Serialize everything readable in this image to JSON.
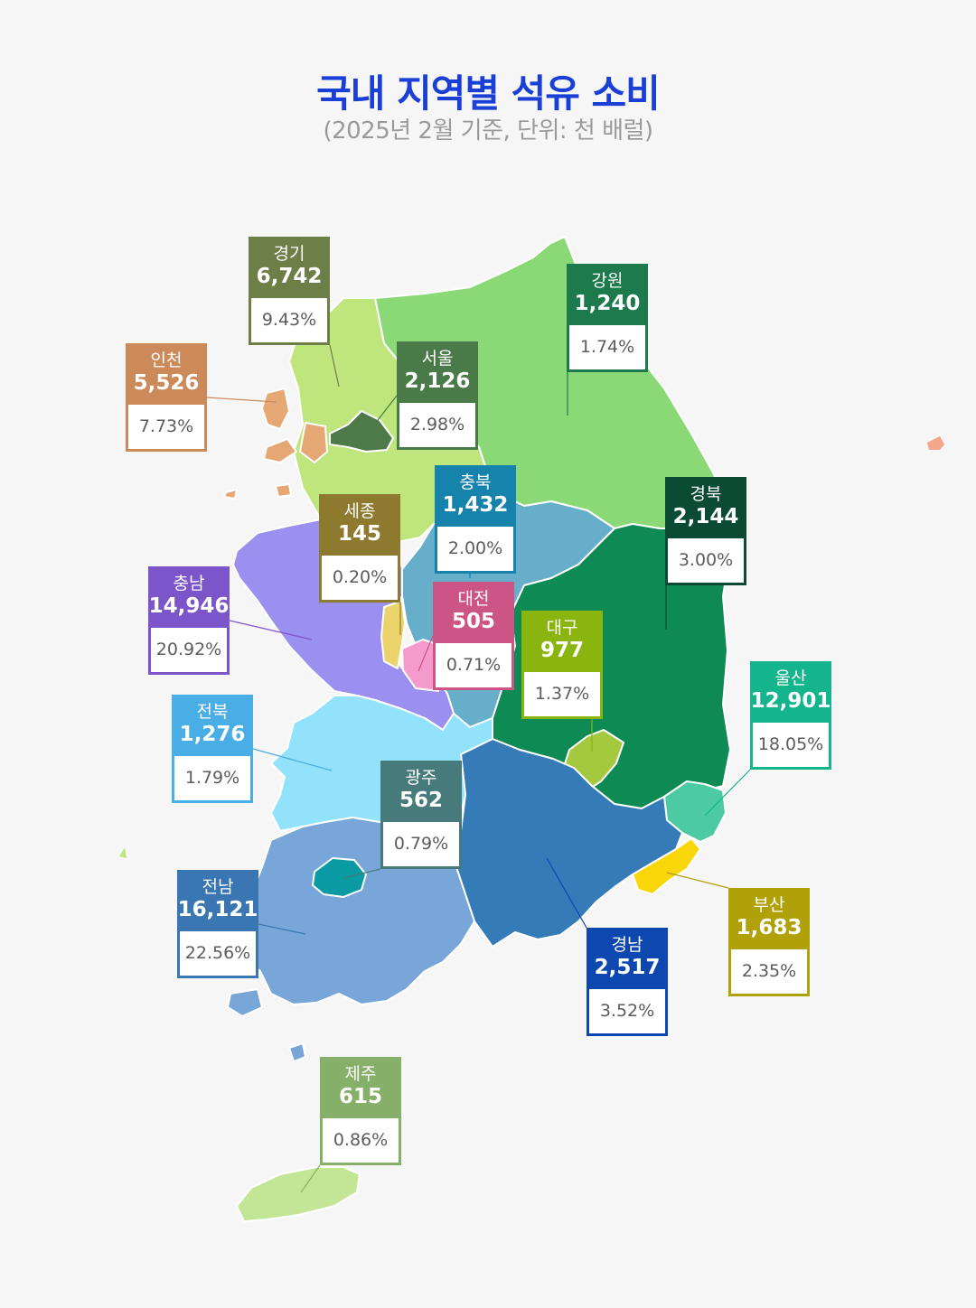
{
  "title": "국내 지역별 석유 소비",
  "subtitle": "(2025년 2월 기준, 단위: 천 배럴)",
  "title_color": "#1a3fd6",
  "regions": [
    {
      "key": "gyeonggi",
      "name": "경기",
      "value": "6,742",
      "pct": "9.43%",
      "color": "#6e7e47",
      "fill": "#bfe57d"
    },
    {
      "key": "gangwon",
      "name": "강원",
      "value": "1,240",
      "pct": "1.74%",
      "color": "#1c7a4c",
      "fill": "#8bd876"
    },
    {
      "key": "incheon",
      "name": "인천",
      "value": "5,526",
      "pct": "7.73%",
      "color": "#cc8a5a",
      "fill": "#e5a773"
    },
    {
      "key": "seoul",
      "name": "서울",
      "value": "2,126",
      "pct": "2.98%",
      "color": "#4a7a48",
      "fill": "#4e7a4a"
    },
    {
      "key": "chungbuk",
      "name": "충북",
      "value": "1,432",
      "pct": "2.00%",
      "color": "#1683ad",
      "fill": "#66aec9"
    },
    {
      "key": "gyeongbuk",
      "name": "경북",
      "value": "2,144",
      "pct": "3.00%",
      "color": "#0b4a33",
      "fill": "#0e8a55"
    },
    {
      "key": "sejong",
      "name": "세종",
      "value": "145",
      "pct": "0.20%",
      "color": "#8e7a2e",
      "fill": "#ecd26b"
    },
    {
      "key": "chungnam",
      "name": "충남",
      "value": "14,946",
      "pct": "20.92%",
      "color": "#7b55c9",
      "fill": "#9b8ff0"
    },
    {
      "key": "daejeon",
      "name": "대전",
      "value": "505",
      "pct": "0.71%",
      "color": "#cc5586",
      "fill": "#f59acc"
    },
    {
      "key": "daegu",
      "name": "대구",
      "value": "977",
      "pct": "1.37%",
      "color": "#8ab40e",
      "fill": "#a4c83e"
    },
    {
      "key": "ulsan",
      "name": "울산",
      "value": "12,901",
      "pct": "18.05%",
      "color": "#14b58c",
      "fill": "#4ccaa2"
    },
    {
      "key": "jeonbuk",
      "name": "전북",
      "value": "1,276",
      "pct": "1.79%",
      "color": "#4aaee6",
      "fill": "#93e2fb"
    },
    {
      "key": "gwangju",
      "name": "광주",
      "value": "562",
      "pct": "0.79%",
      "color": "#477a7b",
      "fill": "#0a9aa4"
    },
    {
      "key": "jeonnam",
      "name": "전남",
      "value": "16,121",
      "pct": "22.56%",
      "color": "#3a77b2",
      "fill": "#78a6d8"
    },
    {
      "key": "gyeongnam",
      "name": "경남",
      "value": "2,517",
      "pct": "3.52%",
      "color": "#0d48b0",
      "fill": "#347bb8"
    },
    {
      "key": "busan",
      "name": "부산",
      "value": "1,683",
      "pct": "2.35%",
      "color": "#b0a009",
      "fill": "#f8d60a"
    },
    {
      "key": "jeju",
      "name": "제주",
      "value": "615",
      "pct": "0.86%",
      "color": "#86b06a",
      "fill": "#c3e596"
    }
  ]
}
